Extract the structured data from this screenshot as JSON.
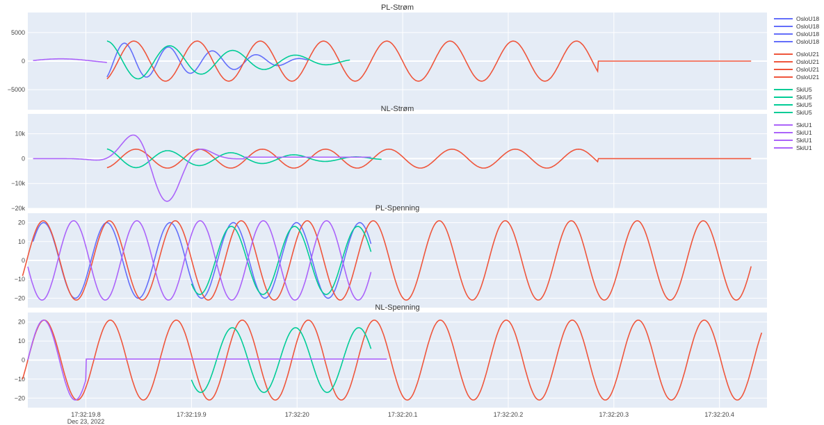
{
  "chart_data": {
    "type": "line",
    "x_axis": {
      "range": [
        "17:32:19.745",
        "17:32:20.445"
      ],
      "ticks": [
        {
          "label": "17:32:19.8",
          "sublabel": "Dec 23, 2022",
          "t": 19.8
        },
        {
          "label": "17:32:19.9",
          "sublabel": "",
          "t": 19.9
        },
        {
          "label": "17:32:20",
          "sublabel": "",
          "t": 20.0
        },
        {
          "label": "17:32:20.1",
          "sublabel": "",
          "t": 20.1
        },
        {
          "label": "17:32:20.2",
          "sublabel": "",
          "t": 20.2
        },
        {
          "label": "17:32:20.3",
          "sublabel": "",
          "t": 20.3
        },
        {
          "label": "17:32:20.4",
          "sublabel": "",
          "t": 20.4
        }
      ]
    },
    "panels": [
      {
        "title": "PL-Strøm",
        "ylim": [
          -8500,
          8500
        ],
        "yticks": [
          {
            "v": 5000,
            "label": "5000"
          },
          {
            "v": 0,
            "label": "0"
          },
          {
            "v": -5000,
            "label": "−5000"
          }
        ]
      },
      {
        "title": "NL-Strøm",
        "ylim": [
          -20000,
          18000
        ],
        "yticks": [
          {
            "v": 10000,
            "label": "10k"
          },
          {
            "v": 0,
            "label": "0"
          },
          {
            "v": -10000,
            "label": "−10k"
          },
          {
            "v": -20000,
            "label": "−20k"
          }
        ]
      },
      {
        "title": "PL-Spenning",
        "ylim": [
          -25,
          25
        ],
        "yticks": [
          {
            "v": 20,
            "label": "20"
          },
          {
            "v": 10,
            "label": "10"
          },
          {
            "v": 0,
            "label": "0"
          },
          {
            "v": -10,
            "label": "−10"
          },
          {
            "v": -20,
            "label": "−20"
          }
        ]
      },
      {
        "title": "NL-Spenning",
        "ylim": [
          -25,
          25
        ],
        "yticks": [
          {
            "v": 20,
            "label": "20"
          },
          {
            "v": 10,
            "label": "10"
          },
          {
            "v": 0,
            "label": "0"
          },
          {
            "v": -10,
            "label": "−10"
          },
          {
            "v": -20,
            "label": "−20"
          }
        ]
      }
    ],
    "legend": {
      "placement": "right",
      "groups": [
        {
          "name": "OsloU18",
          "color": "#636efa",
          "entries": [
            "OsloU18",
            "OsloU18",
            "OsloU18",
            "OsloU18"
          ]
        },
        {
          "name": "OsloU21",
          "color": "#ef553b",
          "entries": [
            "OsloU21",
            "OsloU21",
            "OsloU21",
            "OsloU21"
          ]
        },
        {
          "name": "SkiU5",
          "color": "#00cc96",
          "entries": [
            "SkiU5",
            "SkiU5",
            "SkiU5",
            "SkiU5"
          ]
        },
        {
          "name": "SkiU1",
          "color": "#ab63fa",
          "entries": [
            "SkiU1",
            "SkiU1",
            "SkiU1",
            "SkiU1"
          ]
        }
      ]
    },
    "series": [
      {
        "group": "OsloU18",
        "panel": 0,
        "shape": "wave",
        "start": 19.82,
        "end": 20.01,
        "amp": 3400,
        "freq": 24,
        "phase": 0.3,
        "decay": true
      },
      {
        "group": "OsloU21",
        "panel": 0,
        "shape": "wave",
        "start": 19.82,
        "end": 20.29,
        "amp": 3500,
        "freq": 16.7,
        "phase": 3.6,
        "tail": 0
      },
      {
        "group": "SkiU5",
        "panel": 0,
        "shape": "wave",
        "start": 19.82,
        "end": 20.05,
        "amp": 3500,
        "freq": 16.7,
        "phase": 0.0,
        "decay": true
      },
      {
        "group": "SkiU1",
        "panel": 0,
        "shape": "blip",
        "start": 19.75,
        "end": 20.07,
        "amp": 500
      },
      {
        "group": "OsloU21",
        "panel": 1,
        "shape": "wave",
        "start": 19.82,
        "end": 20.29,
        "amp": 3800,
        "freq": 16.7,
        "phase": 3.4,
        "tail": 0
      },
      {
        "group": "SkiU5",
        "panel": 1,
        "shape": "wave",
        "start": 19.82,
        "end": 20.08,
        "amp": 4000,
        "freq": 16.7,
        "phase": 0.2,
        "decay": true
      },
      {
        "group": "SkiU1",
        "panel": 1,
        "shape": "burst",
        "start": 19.75,
        "end": 20.07,
        "amp": 18000,
        "freq": 12.5,
        "phase": 0.5
      },
      {
        "group": "OsloU18",
        "panel": 2,
        "shape": "wave",
        "start": 19.75,
        "end": 20.07,
        "amp": 20,
        "freq": 16.7,
        "phase": 0.0
      },
      {
        "group": "OsloU21",
        "panel": 2,
        "shape": "wave",
        "start": 19.74,
        "end": 20.43,
        "amp": 21,
        "freq": 16.0,
        "phase": 0.1
      },
      {
        "group": "SkiU5",
        "panel": 2,
        "shape": "wave",
        "start": 19.9,
        "end": 20.07,
        "amp": 18,
        "freq": 16.7,
        "phase": 0.2
      },
      {
        "group": "SkiU1",
        "panel": 2,
        "shape": "wave",
        "start": 19.745,
        "end": 20.07,
        "amp": 21,
        "freq": 16.7,
        "phase": 3.3
      },
      {
        "group": "OsloU21",
        "panel": 3,
        "shape": "wave",
        "start": 19.74,
        "end": 20.44,
        "amp": 21,
        "freq": 16.0,
        "phase": 0.0
      },
      {
        "group": "SkiU5",
        "panel": 3,
        "shape": "wave",
        "start": 19.9,
        "end": 20.07,
        "amp": 17,
        "freq": 16.7,
        "phase": 0.1
      },
      {
        "group": "SkiU1",
        "panel": 3,
        "shape": "flatwave",
        "start": 19.745,
        "end": 20.085,
        "amp": 21,
        "freq": 16.7,
        "phase": 0.0
      }
    ]
  }
}
